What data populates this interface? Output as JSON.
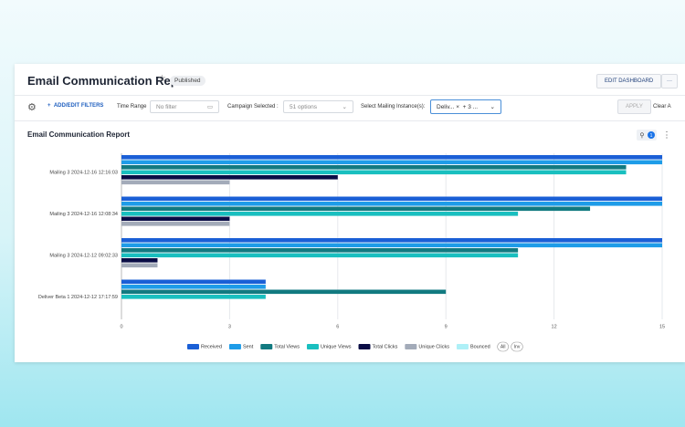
{
  "header": {
    "title": "Email Communication Report",
    "status": "Published",
    "edit_button": "EDIT DASHBOARD",
    "more_button": "···"
  },
  "filters": {
    "add_filters": "ADD/EDIT FILTERS",
    "time_range_label": "Time Range",
    "time_range_value": "No filter",
    "campaign_label": "Campaign Selected :",
    "campaign_value": "51 options",
    "mailing_label": "Select Mailing Instance(s):",
    "mailing_chip": "Deliv...",
    "mailing_more": "+ 3 ...",
    "apply": "APPLY",
    "clear": "Clear A"
  },
  "chart_data": {
    "type": "bar",
    "orientation": "horizontal",
    "title": "Email Communication Report",
    "filter_count": "1",
    "categories": [
      "Mailing 3 2024-12-16 12:16:03",
      "Mailing 3 2024-12-16 12:08:34",
      "Mailing 3 2024-12-12 09:02:33",
      "Deliver Beta 1 2024-12-12 17:17:59"
    ],
    "series": [
      {
        "name": "Received",
        "color": "#1a5fd6",
        "values": [
          15,
          15,
          15,
          4
        ]
      },
      {
        "name": "Sent",
        "color": "#1e9ce8",
        "values": [
          15,
          15,
          15,
          4
        ]
      },
      {
        "name": "Total Views",
        "color": "#127a80",
        "values": [
          14,
          13,
          11,
          9
        ]
      },
      {
        "name": "Unique Views",
        "color": "#19bfbf",
        "values": [
          14,
          11,
          11,
          4
        ]
      },
      {
        "name": "Total Clicks",
        "color": "#0a0d45",
        "values": [
          6,
          3,
          1,
          0
        ]
      },
      {
        "name": "Unique Clicks",
        "color": "#a3abb9",
        "values": [
          3,
          3,
          1,
          0
        ]
      },
      {
        "name": "Bounced",
        "color": "#aef0f7",
        "values": [
          0,
          0,
          0,
          0
        ]
      }
    ],
    "xlim": [
      0,
      15
    ],
    "xticks": [
      0,
      3,
      6,
      9,
      12,
      15
    ],
    "grid": true,
    "legend_buttons": [
      "All",
      "Inv"
    ]
  }
}
